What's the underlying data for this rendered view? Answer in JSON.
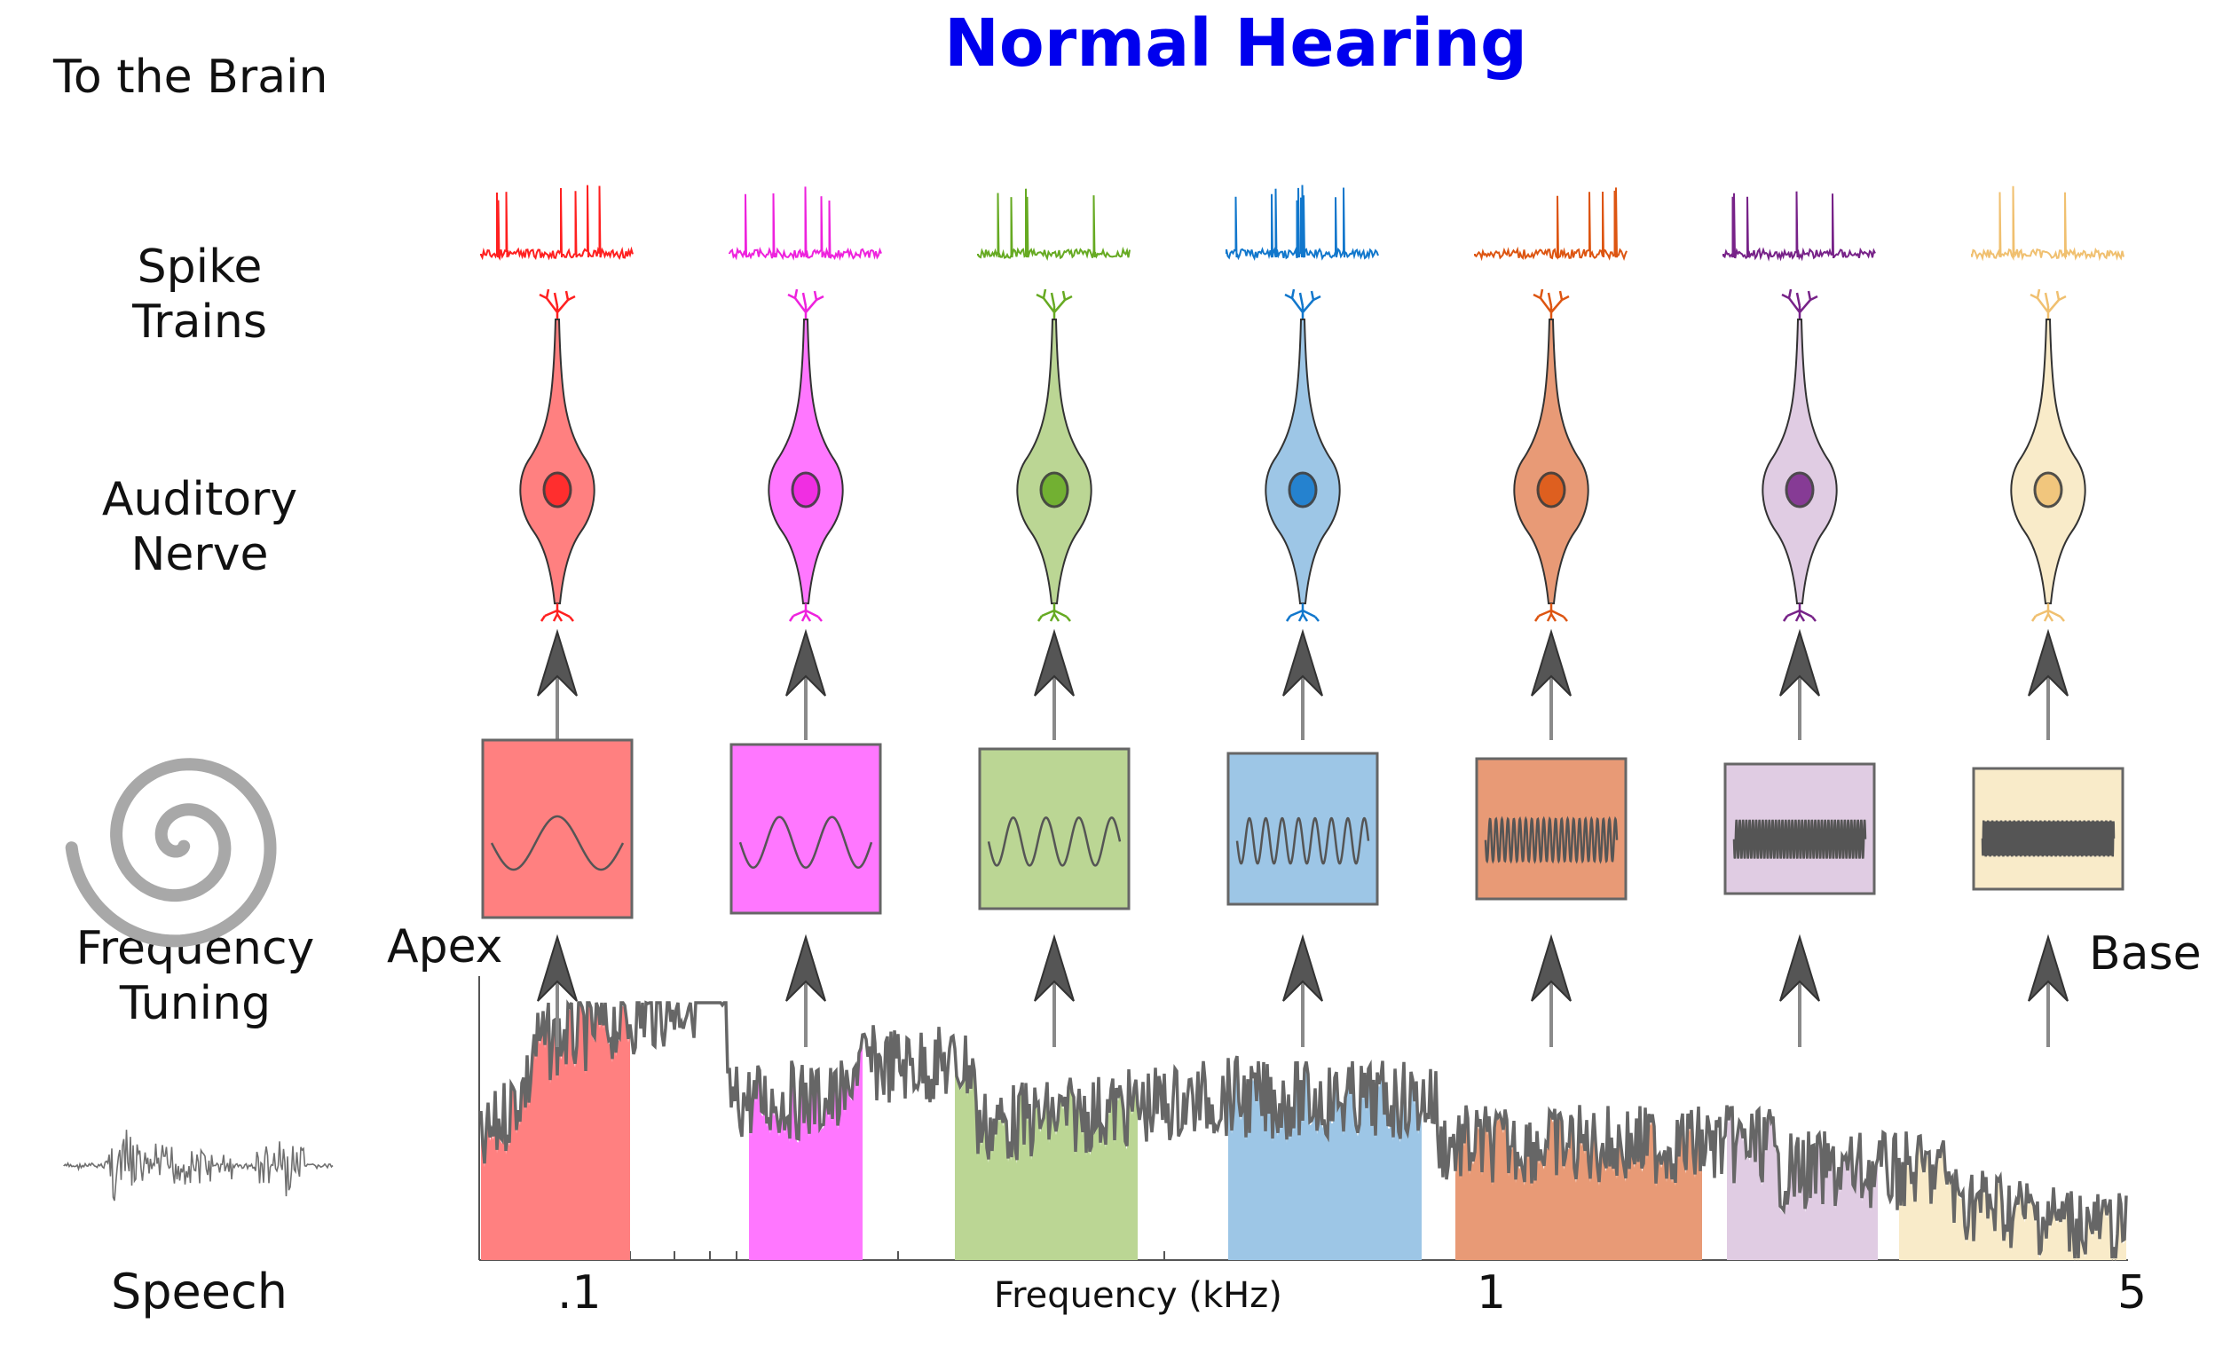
{
  "title": "Normal Hearing",
  "title_color": "#0000ee",
  "row_labels": {
    "brain": "To the Brain",
    "spike_line1": "Spike",
    "spike_line2": "Trains",
    "nerve_line1": "Auditory",
    "nerve_line2": "Nerve",
    "freq_line1": "Frequency",
    "freq_line2": "Tuning",
    "speech": "Speech"
  },
  "apex_label": "Apex",
  "base_label": "Base",
  "axis": {
    "xlabel": "Frequency (kHz)",
    "ticks": [
      ".1",
      "1",
      "5"
    ]
  },
  "channels": [
    {
      "color": "#ff2020",
      "fill": "#ff8080",
      "cycles": 1.5
    },
    {
      "color": "#ee22dd",
      "fill": "#ff77ff",
      "cycles": 2.5
    },
    {
      "color": "#66aa22",
      "fill": "#bbd694",
      "cycles": 4
    },
    {
      "color": "#1177cc",
      "fill": "#9dc6e6",
      "cycles": 8
    },
    {
      "color": "#dd5511",
      "fill": "#e89a76",
      "cycles": 22
    },
    {
      "color": "#772288",
      "fill": "#e0cce3",
      "cycles": 40
    },
    {
      "color": "#f0c070",
      "fill": "#f9ebc9",
      "cycles": 90
    }
  ],
  "icons": [
    "spiral-icon",
    "speech-waveform-icon",
    "neuron-icon",
    "arrow-up-icon"
  ]
}
